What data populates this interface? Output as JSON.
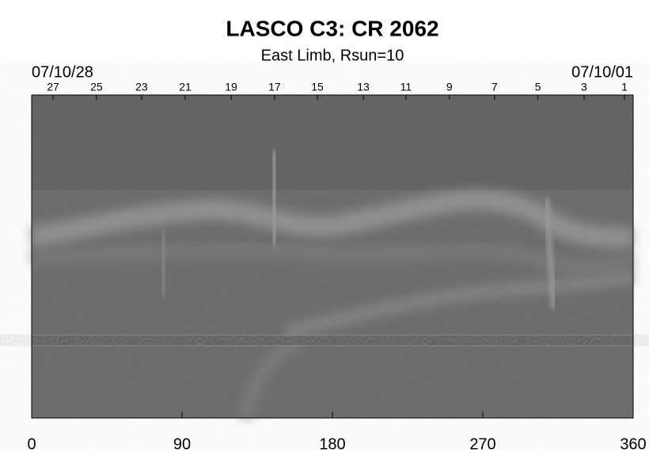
{
  "chart_data": {
    "type": "synoptic-map",
    "title": "LASCO C3: CR 2062",
    "subtitle": "East Limb, Rsun=10",
    "start_date": "07/10/28",
    "end_date": "07/10/01",
    "xlim": [
      0,
      360
    ],
    "xticks": [
      0,
      90,
      180,
      270,
      360
    ],
    "top_ticks": [
      {
        "value": 12.8,
        "label": "27"
      },
      {
        "value": 38.8,
        "label": "25"
      },
      {
        "value": 65.8,
        "label": "23"
      },
      {
        "value": 91.9,
        "label": "21"
      },
      {
        "value": 119.4,
        "label": "19"
      },
      {
        "value": 145.4,
        "label": "17"
      },
      {
        "value": 171,
        "label": "15"
      },
      {
        "value": 198.5,
        "label": "13"
      },
      {
        "value": 224,
        "label": "11"
      },
      {
        "value": 250,
        "label": "9"
      },
      {
        "value": 277,
        "label": "7"
      },
      {
        "value": 303,
        "label": "5"
      },
      {
        "value": 330.6,
        "label": "3"
      },
      {
        "value": 354.8,
        "label": "1"
      }
    ]
  }
}
